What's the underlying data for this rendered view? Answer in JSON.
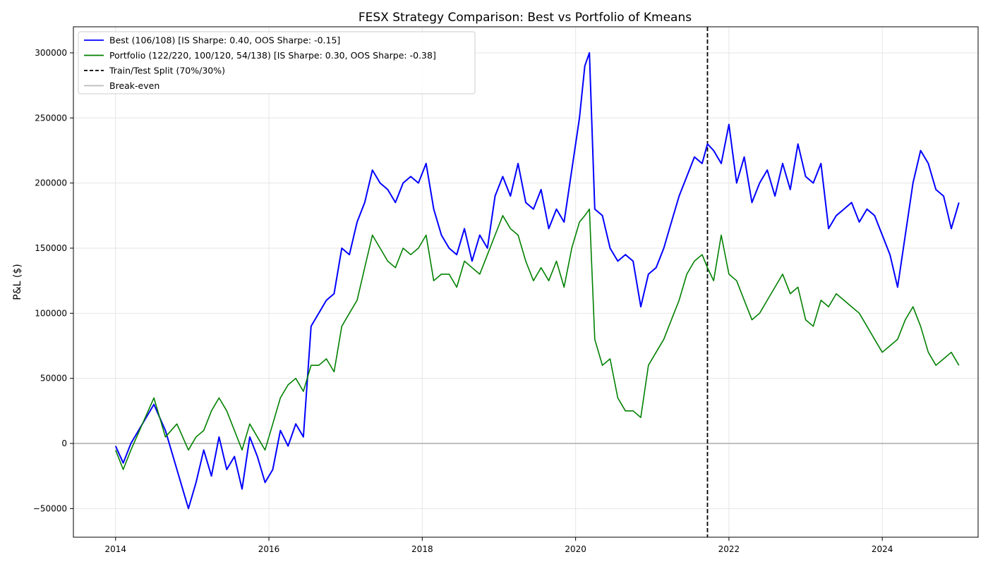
{
  "chart_data": {
    "type": "line",
    "title": "FESX Strategy Comparison: Best vs Portfolio of Kmeans",
    "xlabel": "",
    "ylabel": "P&L ($)",
    "xlim": [
      2013.45,
      2025.25
    ],
    "ylim": [
      -72000,
      320000
    ],
    "xticks": [
      2014,
      2016,
      2018,
      2020,
      2022,
      2024
    ],
    "yticks": [
      -50000,
      0,
      50000,
      100000,
      150000,
      200000,
      250000,
      300000
    ],
    "grid": true,
    "legend_position": "upper-left",
    "split_x": 2021.72,
    "breakeven_y": 0,
    "series": [
      {
        "name": "Best (106/108) [IS Sharpe: 0.40, OOS Sharpe: -0.15]",
        "color": "#0000ff",
        "x": [
          2014.0,
          2014.1,
          2014.2,
          2014.35,
          2014.5,
          2014.65,
          2014.8,
          2014.95,
          2015.05,
          2015.15,
          2015.25,
          2015.35,
          2015.45,
          2015.55,
          2015.65,
          2015.75,
          2015.85,
          2015.95,
          2016.05,
          2016.15,
          2016.25,
          2016.35,
          2016.45,
          2016.55,
          2016.65,
          2016.75,
          2016.85,
          2016.95,
          2017.05,
          2017.15,
          2017.25,
          2017.35,
          2017.45,
          2017.55,
          2017.65,
          2017.75,
          2017.85,
          2017.95,
          2018.05,
          2018.15,
          2018.25,
          2018.35,
          2018.45,
          2018.55,
          2018.65,
          2018.75,
          2018.85,
          2018.95,
          2019.05,
          2019.15,
          2019.25,
          2019.35,
          2019.45,
          2019.55,
          2019.65,
          2019.75,
          2019.85,
          2019.95,
          2020.05,
          2020.12,
          2020.18,
          2020.25,
          2020.35,
          2020.45,
          2020.55,
          2020.65,
          2020.75,
          2020.85,
          2020.95,
          2021.05,
          2021.15,
          2021.25,
          2021.35,
          2021.45,
          2021.55,
          2021.65,
          2021.72,
          2021.8,
          2021.9,
          2022.0,
          2022.1,
          2022.2,
          2022.3,
          2022.4,
          2022.5,
          2022.6,
          2022.7,
          2022.8,
          2022.9,
          2023.0,
          2023.1,
          2023.2,
          2023.3,
          2023.4,
          2023.5,
          2023.6,
          2023.7,
          2023.8,
          2023.9,
          2024.0,
          2024.1,
          2024.2,
          2024.3,
          2024.4,
          2024.5,
          2024.6,
          2024.7,
          2024.8,
          2024.9,
          2025.0
        ],
        "values": [
          -2000,
          -15000,
          0,
          15000,
          30000,
          10000,
          -20000,
          -50000,
          -30000,
          -5000,
          -25000,
          5000,
          -20000,
          -10000,
          -35000,
          5000,
          -10000,
          -30000,
          -20000,
          10000,
          -2000,
          15000,
          5000,
          90000,
          100000,
          110000,
          115000,
          150000,
          145000,
          170000,
          185000,
          210000,
          200000,
          195000,
          185000,
          200000,
          205000,
          200000,
          215000,
          180000,
          160000,
          150000,
          145000,
          165000,
          140000,
          160000,
          150000,
          190000,
          205000,
          190000,
          215000,
          185000,
          180000,
          195000,
          165000,
          180000,
          170000,
          210000,
          250000,
          290000,
          300000,
          180000,
          175000,
          150000,
          140000,
          145000,
          140000,
          105000,
          130000,
          135000,
          150000,
          170000,
          190000,
          205000,
          220000,
          215000,
          230000,
          225000,
          215000,
          245000,
          200000,
          220000,
          185000,
          200000,
          210000,
          190000,
          215000,
          195000,
          230000,
          205000,
          200000,
          215000,
          165000,
          175000,
          180000,
          185000,
          170000,
          180000,
          175000,
          160000,
          145000,
          120000,
          160000,
          200000,
          225000,
          215000,
          195000,
          190000,
          165000,
          185000
        ],
        "linewidth": 2
      },
      {
        "name": "Portfolio (122/220, 100/120, 54/138) [IS Sharpe: 0.30, OOS Sharpe: -0.38]",
        "color": "#008000",
        "x": [
          2014.0,
          2014.1,
          2014.2,
          2014.35,
          2014.5,
          2014.65,
          2014.8,
          2014.95,
          2015.05,
          2015.15,
          2015.25,
          2015.35,
          2015.45,
          2015.55,
          2015.65,
          2015.75,
          2015.85,
          2015.95,
          2016.05,
          2016.15,
          2016.25,
          2016.35,
          2016.45,
          2016.55,
          2016.65,
          2016.75,
          2016.85,
          2016.95,
          2017.05,
          2017.15,
          2017.25,
          2017.35,
          2017.45,
          2017.55,
          2017.65,
          2017.75,
          2017.85,
          2017.95,
          2018.05,
          2018.15,
          2018.25,
          2018.35,
          2018.45,
          2018.55,
          2018.65,
          2018.75,
          2018.85,
          2018.95,
          2019.05,
          2019.15,
          2019.25,
          2019.35,
          2019.45,
          2019.55,
          2019.65,
          2019.75,
          2019.85,
          2019.95,
          2020.05,
          2020.12,
          2020.18,
          2020.25,
          2020.35,
          2020.45,
          2020.55,
          2020.65,
          2020.75,
          2020.85,
          2020.95,
          2021.05,
          2021.15,
          2021.25,
          2021.35,
          2021.45,
          2021.55,
          2021.65,
          2021.72,
          2021.8,
          2021.9,
          2022.0,
          2022.1,
          2022.2,
          2022.3,
          2022.4,
          2022.5,
          2022.6,
          2022.7,
          2022.8,
          2022.9,
          2023.0,
          2023.1,
          2023.2,
          2023.3,
          2023.4,
          2023.5,
          2023.6,
          2023.7,
          2023.8,
          2023.9,
          2024.0,
          2024.1,
          2024.2,
          2024.3,
          2024.4,
          2024.5,
          2024.6,
          2024.7,
          2024.8,
          2024.9,
          2025.0
        ],
        "values": [
          -5000,
          -20000,
          -5000,
          15000,
          35000,
          5000,
          15000,
          -5000,
          5000,
          10000,
          25000,
          35000,
          25000,
          10000,
          -5000,
          15000,
          5000,
          -5000,
          15000,
          35000,
          45000,
          50000,
          40000,
          60000,
          60000,
          65000,
          55000,
          90000,
          100000,
          110000,
          135000,
          160000,
          150000,
          140000,
          135000,
          150000,
          145000,
          150000,
          160000,
          125000,
          130000,
          130000,
          120000,
          140000,
          135000,
          130000,
          145000,
          160000,
          175000,
          165000,
          160000,
          140000,
          125000,
          135000,
          125000,
          140000,
          120000,
          150000,
          170000,
          175000,
          180000,
          80000,
          60000,
          65000,
          35000,
          25000,
          25000,
          20000,
          60000,
          70000,
          80000,
          95000,
          110000,
          130000,
          140000,
          145000,
          135000,
          125000,
          160000,
          130000,
          125000,
          110000,
          95000,
          100000,
          110000,
          120000,
          130000,
          115000,
          120000,
          95000,
          90000,
          110000,
          105000,
          115000,
          110000,
          105000,
          100000,
          90000,
          80000,
          70000,
          75000,
          80000,
          95000,
          105000,
          90000,
          70000,
          60000,
          65000,
          70000,
          60000
        ]
      }
    ],
    "legend": [
      {
        "label": "Best (106/108) [IS Sharpe: 0.40, OOS Sharpe: -0.15]",
        "color": "#0000ff",
        "style": "solid"
      },
      {
        "label": "Portfolio (122/220, 100/120, 54/138) [IS Sharpe: 0.30, OOS Sharpe: -0.38]",
        "color": "#008000",
        "style": "solid"
      },
      {
        "label": "Train/Test Split (70%/30%)",
        "color": "#000000",
        "style": "dashed"
      },
      {
        "label": "Break-even",
        "color": "#bbbbbb",
        "style": "solid"
      }
    ]
  }
}
